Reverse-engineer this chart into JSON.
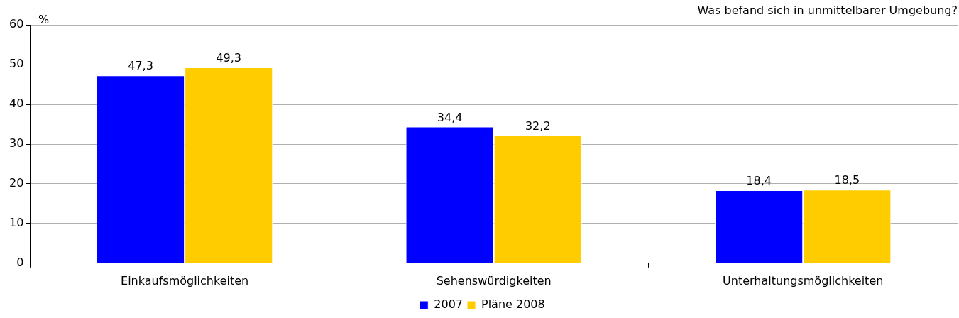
{
  "chart_data": {
    "type": "bar",
    "title": "Was befand sich in unmittelbarer Umgebung?",
    "ylabel": "%",
    "categories": [
      "Einkaufsmöglichkeiten",
      "Sehenswürdigkeiten",
      "Unterhaltungsmöglichkeiten"
    ],
    "series": [
      {
        "name": "2007",
        "color": "#0000ff",
        "values": [
          47.3,
          34.4,
          18.4
        ],
        "value_labels": [
          "47,3",
          "34,4",
          "18,4"
        ]
      },
      {
        "name": "Pläne 2008",
        "color": "#ffcc00",
        "values": [
          49.3,
          32.2,
          18.5
        ],
        "value_labels": [
          "49,3",
          "32,2",
          "18,5"
        ]
      }
    ],
    "ylim": [
      0,
      60
    ],
    "yticks": [
      0,
      10,
      20,
      30,
      40,
      50,
      60
    ],
    "grid": "y",
    "legend": "bottom"
  }
}
